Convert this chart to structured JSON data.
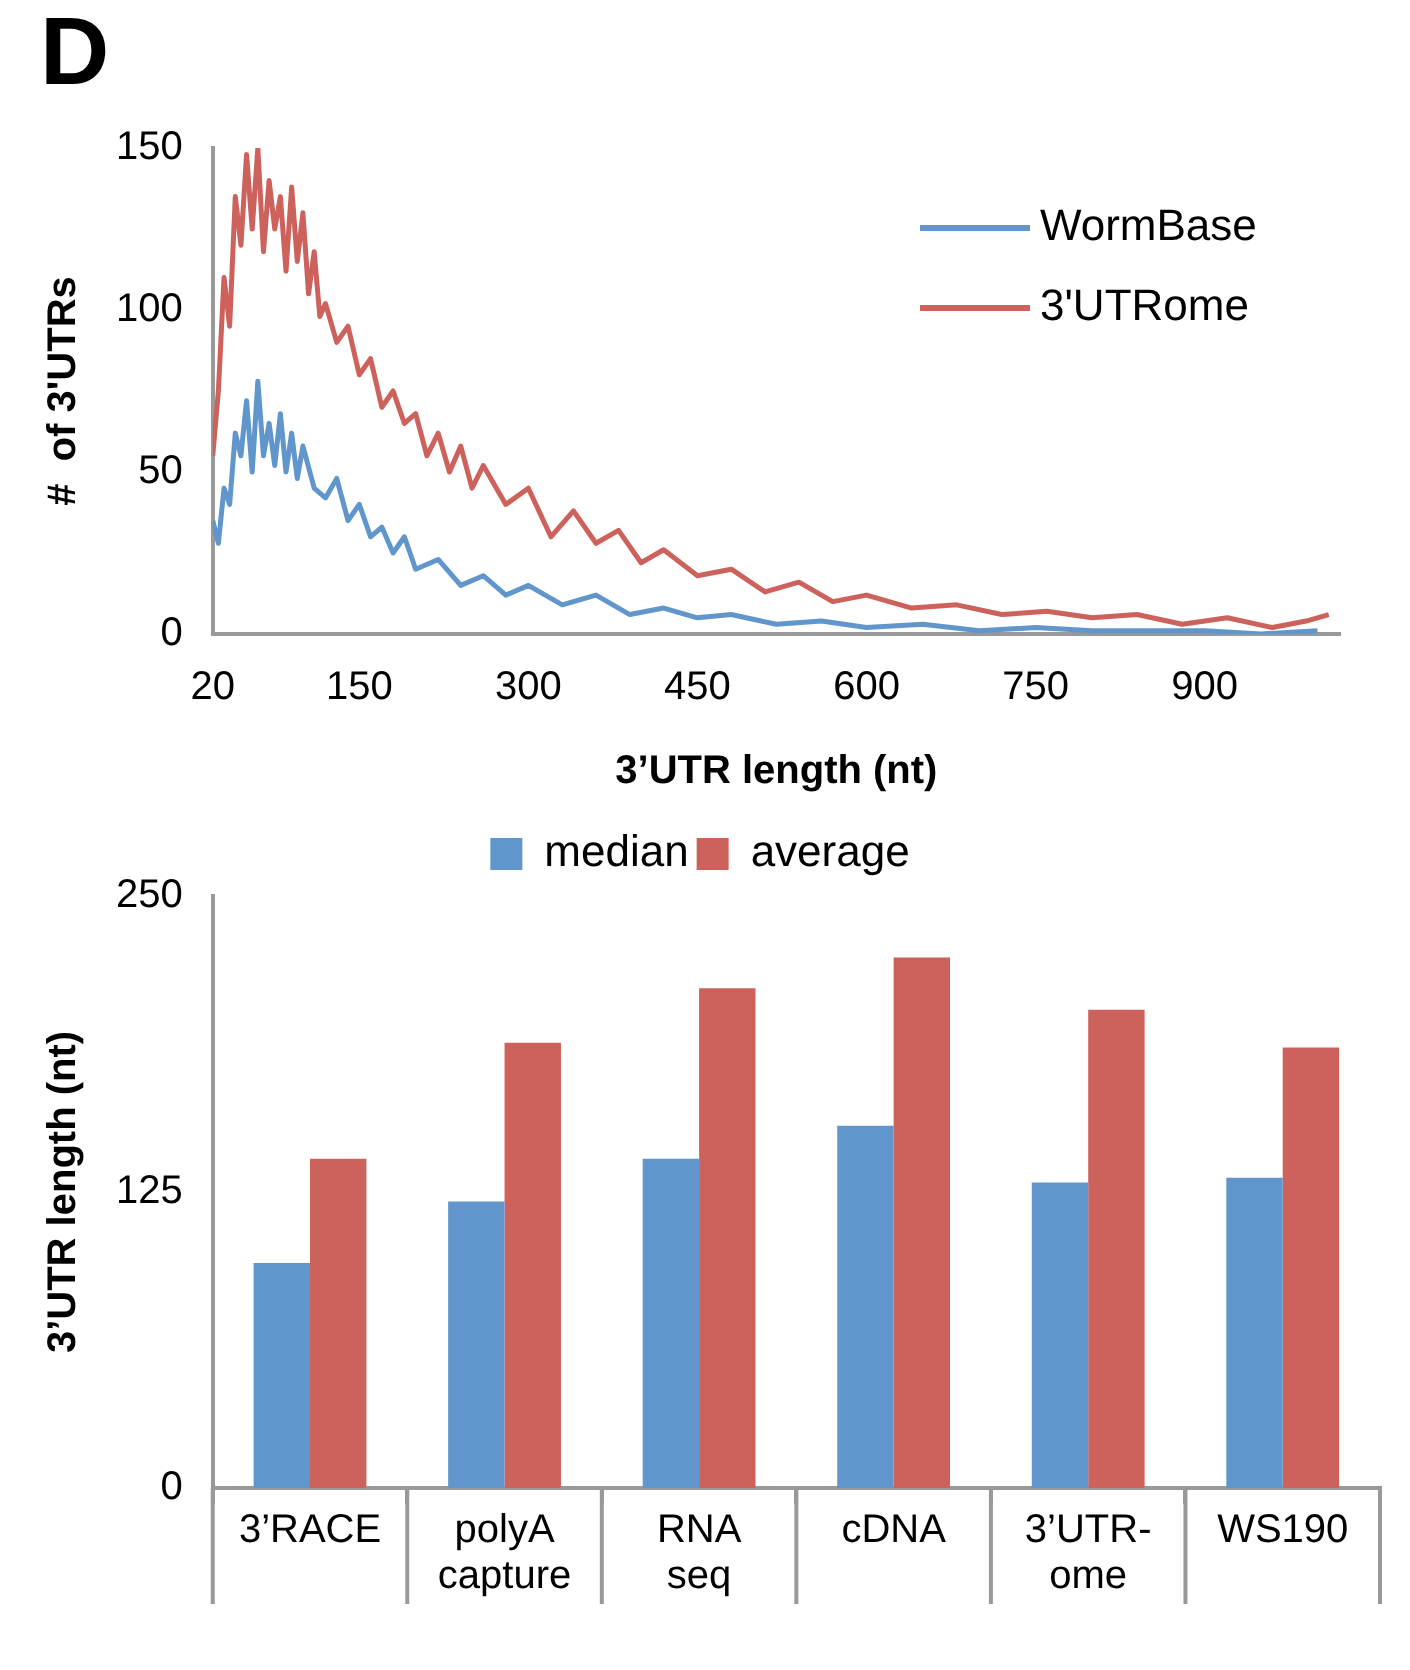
{
  "chart_data": [
    {
      "type": "line",
      "annotations": [
        "D"
      ],
      "xlabel": "3’UTR length (nt)",
      "ylabel": "#  of 3'UTRs",
      "xlim": [
        20,
        1020
      ],
      "xticks": [
        20,
        150,
        300,
        450,
        600,
        750,
        900
      ],
      "ylim": [
        0,
        150
      ],
      "yticks": [
        0,
        50,
        100,
        150
      ],
      "grid": false,
      "legend": "top right",
      "marker": "none",
      "line_style": "solid",
      "series": [
        {
          "name": "WormBase",
          "color": "#6096cc",
          "x": [
            20,
            25,
            30,
            35,
            40,
            45,
            50,
            55,
            60,
            65,
            70,
            75,
            80,
            85,
            90,
            95,
            100,
            110,
            120,
            130,
            140,
            150,
            160,
            170,
            180,
            190,
            200,
            220,
            240,
            260,
            280,
            300,
            330,
            360,
            390,
            420,
            450,
            480,
            520,
            560,
            600,
            650,
            700,
            750,
            800,
            850,
            900,
            950,
            1000
          ],
          "values": [
            35,
            28,
            45,
            40,
            62,
            55,
            72,
            50,
            78,
            55,
            65,
            52,
            68,
            50,
            62,
            48,
            58,
            45,
            42,
            48,
            35,
            40,
            30,
            33,
            25,
            30,
            20,
            23,
            15,
            18,
            12,
            15,
            9,
            12,
            6,
            8,
            5,
            6,
            3,
            4,
            2,
            3,
            1,
            2,
            1,
            1,
            1,
            0,
            1
          ]
        },
        {
          "name": "3'UTRome",
          "color": "#cd625c",
          "x": [
            20,
            25,
            30,
            35,
            40,
            45,
            50,
            55,
            60,
            65,
            70,
            75,
            80,
            85,
            90,
            95,
            100,
            105,
            110,
            115,
            120,
            130,
            140,
            150,
            160,
            170,
            180,
            190,
            200,
            210,
            220,
            230,
            240,
            250,
            260,
            280,
            300,
            320,
            340,
            360,
            380,
            400,
            420,
            450,
            480,
            510,
            540,
            570,
            600,
            640,
            680,
            720,
            760,
            800,
            840,
            880,
            920,
            960,
            990,
            1010
          ],
          "values": [
            55,
            75,
            110,
            95,
            135,
            120,
            148,
            125,
            150,
            118,
            140,
            125,
            135,
            112,
            138,
            115,
            130,
            105,
            118,
            98,
            102,
            90,
            95,
            80,
            85,
            70,
            75,
            65,
            68,
            55,
            62,
            50,
            58,
            45,
            52,
            40,
            45,
            30,
            38,
            28,
            32,
            22,
            26,
            18,
            20,
            13,
            16,
            10,
            12,
            8,
            9,
            6,
            7,
            5,
            6,
            3,
            5,
            2,
            4,
            6
          ]
        }
      ]
    },
    {
      "type": "bar",
      "ylabel": "3’UTR length (nt)",
      "categories": [
        "3’RACE",
        "polyA capture",
        "RNA seq",
        "cDNA",
        "3’UTR-ome",
        "WS190"
      ],
      "ylim": [
        0,
        250
      ],
      "yticks": [
        0,
        125,
        250
      ],
      "grid": false,
      "legend": "top",
      "series": [
        {
          "name": "median",
          "color": "#6096cc",
          "values": [
            95,
            121,
            139,
            153,
            129,
            131
          ]
        },
        {
          "name": "average",
          "color": "#cd625c",
          "values": [
            139,
            188,
            211,
            224,
            202,
            186
          ]
        }
      ]
    }
  ]
}
